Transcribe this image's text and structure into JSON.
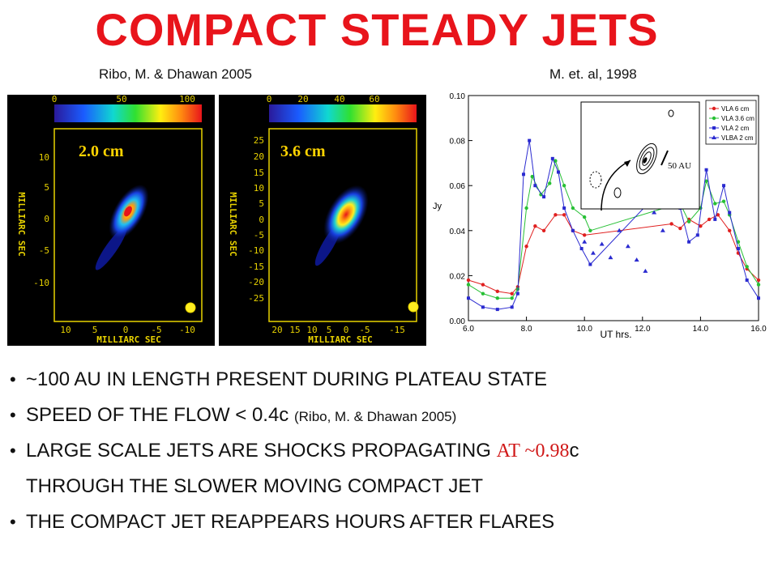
{
  "title": "COMPACT STEADY JETS",
  "citations": {
    "left": "Ribo, M. & Dhawan 2005",
    "right": "M. et. al, 1998"
  },
  "panel_left": {
    "band": "2.0 cm",
    "colorbar_ticks": [
      "0",
      "50",
      "100"
    ],
    "y_ticks": [
      "10",
      "5",
      "0",
      "-5",
      "-10"
    ],
    "x_ticks": [
      "10",
      "5",
      "0",
      "-5",
      "-10"
    ],
    "y_label": "MILLIARC SEC",
    "x_label": "MILLIARC SEC"
  },
  "panel_right": {
    "band": "3.6 cm",
    "colorbar_ticks": [
      "0",
      "20",
      "40",
      "60"
    ],
    "y_ticks": [
      "25",
      "20",
      "15",
      "10",
      "5",
      "0",
      "-5",
      "-10",
      "-15",
      "-20",
      "-25"
    ],
    "x_ticks": [
      "20",
      "15",
      "10",
      "5",
      "0",
      "-5",
      "-15"
    ],
    "y_label": "MILLIARC SEC",
    "x_label": "MILLIARC SEC"
  },
  "chart_data": {
    "type": "line",
    "xlabel": "UT hrs.",
    "ylabel": "Jy",
    "xlim": [
      6.0,
      16.0
    ],
    "ylim": [
      0.0,
      0.1
    ],
    "x_ticks": [
      "6.0",
      "8.0",
      "10.0",
      "12.0",
      "14.0",
      "16.0"
    ],
    "y_ticks": [
      "0.00",
      "0.02",
      "0.04",
      "0.06",
      "0.08",
      "0.10"
    ],
    "inset_label": "50 AU",
    "series": [
      {
        "name": "VLA 6 cm",
        "color": "#e02020",
        "marker": "circle",
        "x": [
          6.0,
          6.5,
          7.0,
          7.5,
          7.7,
          8.0,
          8.3,
          8.6,
          9.0,
          9.3,
          9.6,
          10.0,
          13.0,
          13.3,
          13.6,
          14.0,
          14.3,
          14.6,
          15.0,
          15.3,
          15.6,
          16.0
        ],
        "y": [
          0.018,
          0.016,
          0.013,
          0.012,
          0.015,
          0.033,
          0.042,
          0.04,
          0.047,
          0.047,
          0.04,
          0.038,
          0.043,
          0.041,
          0.045,
          0.042,
          0.045,
          0.047,
          0.04,
          0.03,
          0.023,
          0.018
        ]
      },
      {
        "name": "VLA 3.6 cm",
        "color": "#27c035",
        "marker": "circle",
        "x": [
          6.0,
          6.5,
          7.0,
          7.5,
          7.7,
          8.0,
          8.2,
          8.5,
          8.8,
          9.0,
          9.3,
          9.6,
          10.0,
          10.2,
          13.0,
          13.3,
          13.6,
          14.0,
          14.2,
          14.5,
          14.8,
          15.0,
          15.3,
          15.6,
          16.0
        ],
        "y": [
          0.016,
          0.012,
          0.01,
          0.01,
          0.014,
          0.05,
          0.064,
          0.056,
          0.061,
          0.071,
          0.06,
          0.05,
          0.046,
          0.04,
          0.051,
          0.052,
          0.044,
          0.05,
          0.062,
          0.052,
          0.053,
          0.047,
          0.035,
          0.024,
          0.016
        ]
      },
      {
        "name": "VLA 2 cm",
        "color": "#2a2ad0",
        "marker": "square",
        "x": [
          6.0,
          6.5,
          7.0,
          7.5,
          7.7,
          7.9,
          8.1,
          8.3,
          8.6,
          8.9,
          9.1,
          9.3,
          9.6,
          9.9,
          10.2,
          13.0,
          13.3,
          13.6,
          13.9,
          14.2,
          14.5,
          14.8,
          15.0,
          15.3,
          15.6,
          16.0
        ],
        "y": [
          0.01,
          0.006,
          0.005,
          0.006,
          0.012,
          0.065,
          0.08,
          0.06,
          0.055,
          0.072,
          0.066,
          0.05,
          0.04,
          0.032,
          0.025,
          0.063,
          0.05,
          0.035,
          0.038,
          0.067,
          0.045,
          0.06,
          0.048,
          0.032,
          0.018,
          0.01
        ]
      },
      {
        "name": "VLBA 2 cm",
        "color": "#2a2ad0",
        "marker": "triangle",
        "x": [
          10.0,
          10.3,
          10.6,
          10.9,
          11.2,
          11.5,
          11.8,
          12.1,
          12.4,
          12.7
        ],
        "y": [
          0.035,
          0.03,
          0.034,
          0.028,
          0.04,
          0.033,
          0.027,
          0.022,
          0.048,
          0.04
        ]
      }
    ]
  },
  "bullets": [
    {
      "text": "~100 AU IN LENGTH PRESENT DURING PLATEAU STATE"
    },
    {
      "text": "SPEED OF THE FLOW < 0.4c",
      "small": "(Ribo, M. & Dhawan 2005)"
    },
    {
      "text": "LARGE SCALE JETS ARE SHOCKS PROPAGATING",
      "accent": "AT ~0.98",
      "tail": "c"
    },
    {
      "text": "THROUGH THE SLOWER MOVING COMPACT JET"
    },
    {
      "text": "THE COMPACT JET REAPPEARS HOURS AFTER FLARES"
    }
  ]
}
